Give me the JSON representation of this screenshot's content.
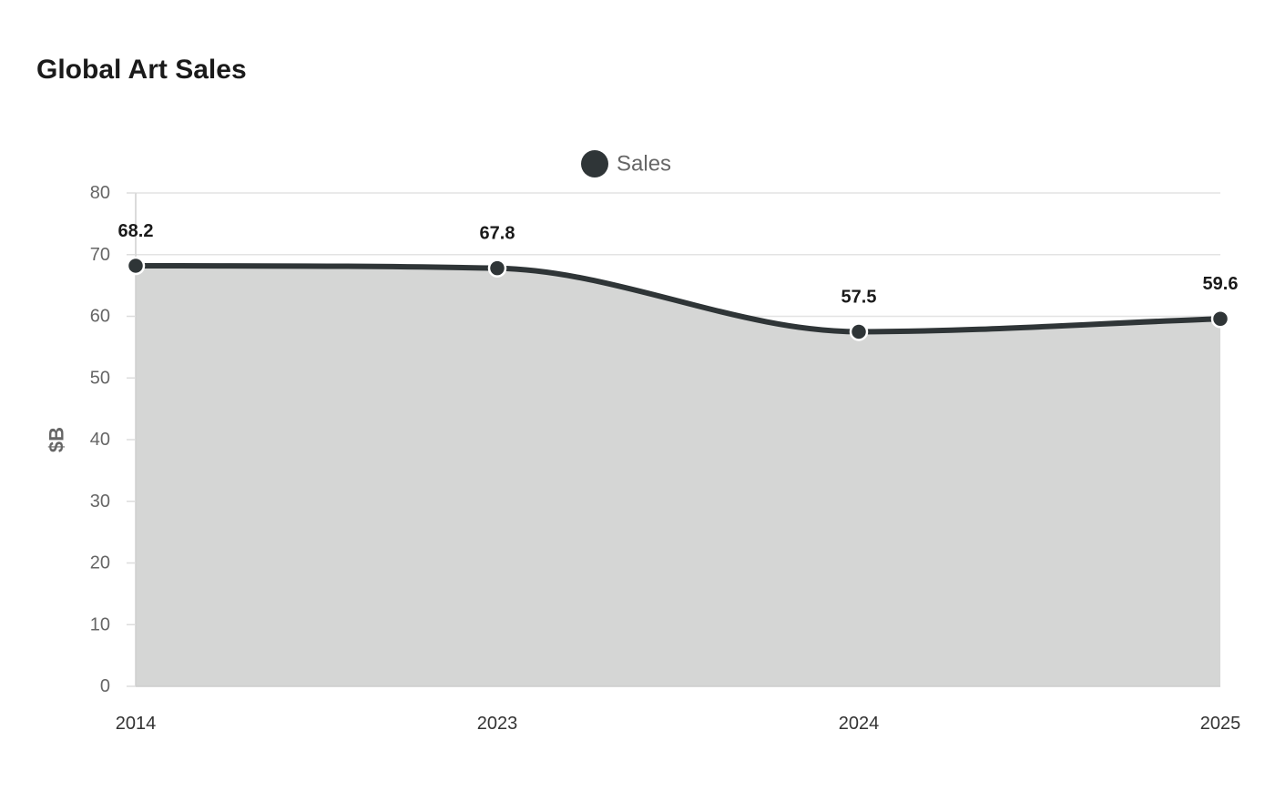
{
  "chart_data": {
    "type": "area",
    "title": "Global Art Sales",
    "categories": [
      "2014",
      "2023",
      "2024",
      "2025"
    ],
    "series": [
      {
        "name": "Sales",
        "values": [
          68.2,
          67.8,
          57.5,
          59.6
        ],
        "color": "#2f3537",
        "fill_color": "#d5d6d5"
      }
    ],
    "data_labels": [
      "68.2",
      "67.8",
      "57.5",
      "59.6"
    ],
    "xlabel": "",
    "ylabel": "$B",
    "ylim": [
      0,
      80
    ],
    "yticks": [
      0,
      10,
      20,
      30,
      40,
      50,
      60,
      70,
      80
    ],
    "grid": true,
    "legend_position": "top-center",
    "smooth": true
  }
}
